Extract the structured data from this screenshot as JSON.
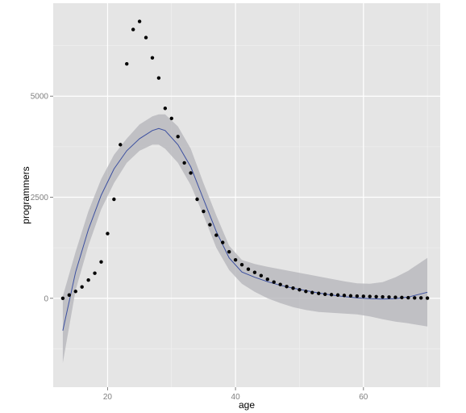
{
  "chart_data": {
    "type": "scatter",
    "title": "",
    "xlabel": "age",
    "ylabel": "programmers",
    "xlim": [
      11.5,
      72.0
    ],
    "ylim": [
      -2200,
      7300
    ],
    "x_ticks": [
      20,
      40,
      60
    ],
    "x_tick_labels": [
      "20",
      "40",
      "60"
    ],
    "y_ticks": [
      0,
      2500,
      5000
    ],
    "y_tick_labels": [
      "0",
      "2500",
      "5000"
    ],
    "grid": true,
    "legend": "none",
    "colors": {
      "panel": "#e5e5e5",
      "grid_major": "#ffffff",
      "grid_minor": "#f2f2f2",
      "points": "#000000",
      "smooth_line": "#3b4fa0",
      "confidence_band": "#b3b3b8"
    },
    "series": [
      {
        "kind": "points",
        "x": [
          13,
          14,
          15,
          16,
          17,
          18,
          19,
          20,
          21,
          22,
          23,
          24,
          25,
          26,
          27,
          28,
          29,
          30,
          31,
          32,
          33,
          34,
          35,
          36,
          37,
          38,
          39,
          40,
          41,
          42,
          43,
          44,
          45,
          46,
          47,
          48,
          49,
          50,
          51,
          52,
          53,
          54,
          55,
          56,
          57,
          58,
          59,
          60,
          61,
          62,
          63,
          64,
          65,
          66,
          67,
          68,
          69,
          70
        ],
        "y": [
          0,
          80,
          170,
          280,
          450,
          620,
          900,
          1600,
          2450,
          3800,
          5800,
          6650,
          6850,
          6450,
          5950,
          5450,
          4700,
          4450,
          4000,
          3350,
          3100,
          2450,
          2150,
          1820,
          1560,
          1380,
          1150,
          950,
          830,
          720,
          640,
          560,
          470,
          400,
          340,
          290,
          250,
          210,
          170,
          140,
          120,
          100,
          90,
          80,
          70,
          60,
          55,
          50,
          45,
          40,
          35,
          30,
          25,
          20,
          15,
          10,
          10,
          5
        ]
      },
      {
        "kind": "smooth",
        "x": [
          13,
          15,
          17,
          19,
          21,
          23,
          25,
          27,
          28,
          29,
          31,
          33,
          35,
          37,
          39,
          41,
          43,
          45,
          47,
          49,
          51,
          53,
          55,
          57,
          59,
          61,
          63,
          65,
          67,
          70
        ],
        "y": [
          -800,
          650,
          1700,
          2550,
          3200,
          3650,
          3950,
          4150,
          4200,
          4150,
          3800,
          3250,
          2450,
          1650,
          1000,
          650,
          520,
          410,
          320,
          250,
          190,
          130,
          80,
          40,
          10,
          -10,
          -20,
          -10,
          30,
          150
        ],
        "lower": [
          -1600,
          200,
          1300,
          2200,
          2850,
          3350,
          3650,
          3800,
          3800,
          3700,
          3350,
          2800,
          2050,
          1250,
          700,
          360,
          160,
          0,
          -120,
          -220,
          -290,
          -340,
          -360,
          -380,
          -400,
          -450,
          -520,
          -580,
          -620,
          -700
        ],
        "upper": [
          50,
          1150,
          2150,
          2950,
          3550,
          3950,
          4300,
          4500,
          4550,
          4550,
          4250,
          3700,
          2850,
          2050,
          1300,
          950,
          850,
          780,
          720,
          660,
          600,
          540,
          480,
          420,
          370,
          360,
          400,
          520,
          680,
          1000
        ]
      }
    ]
  }
}
